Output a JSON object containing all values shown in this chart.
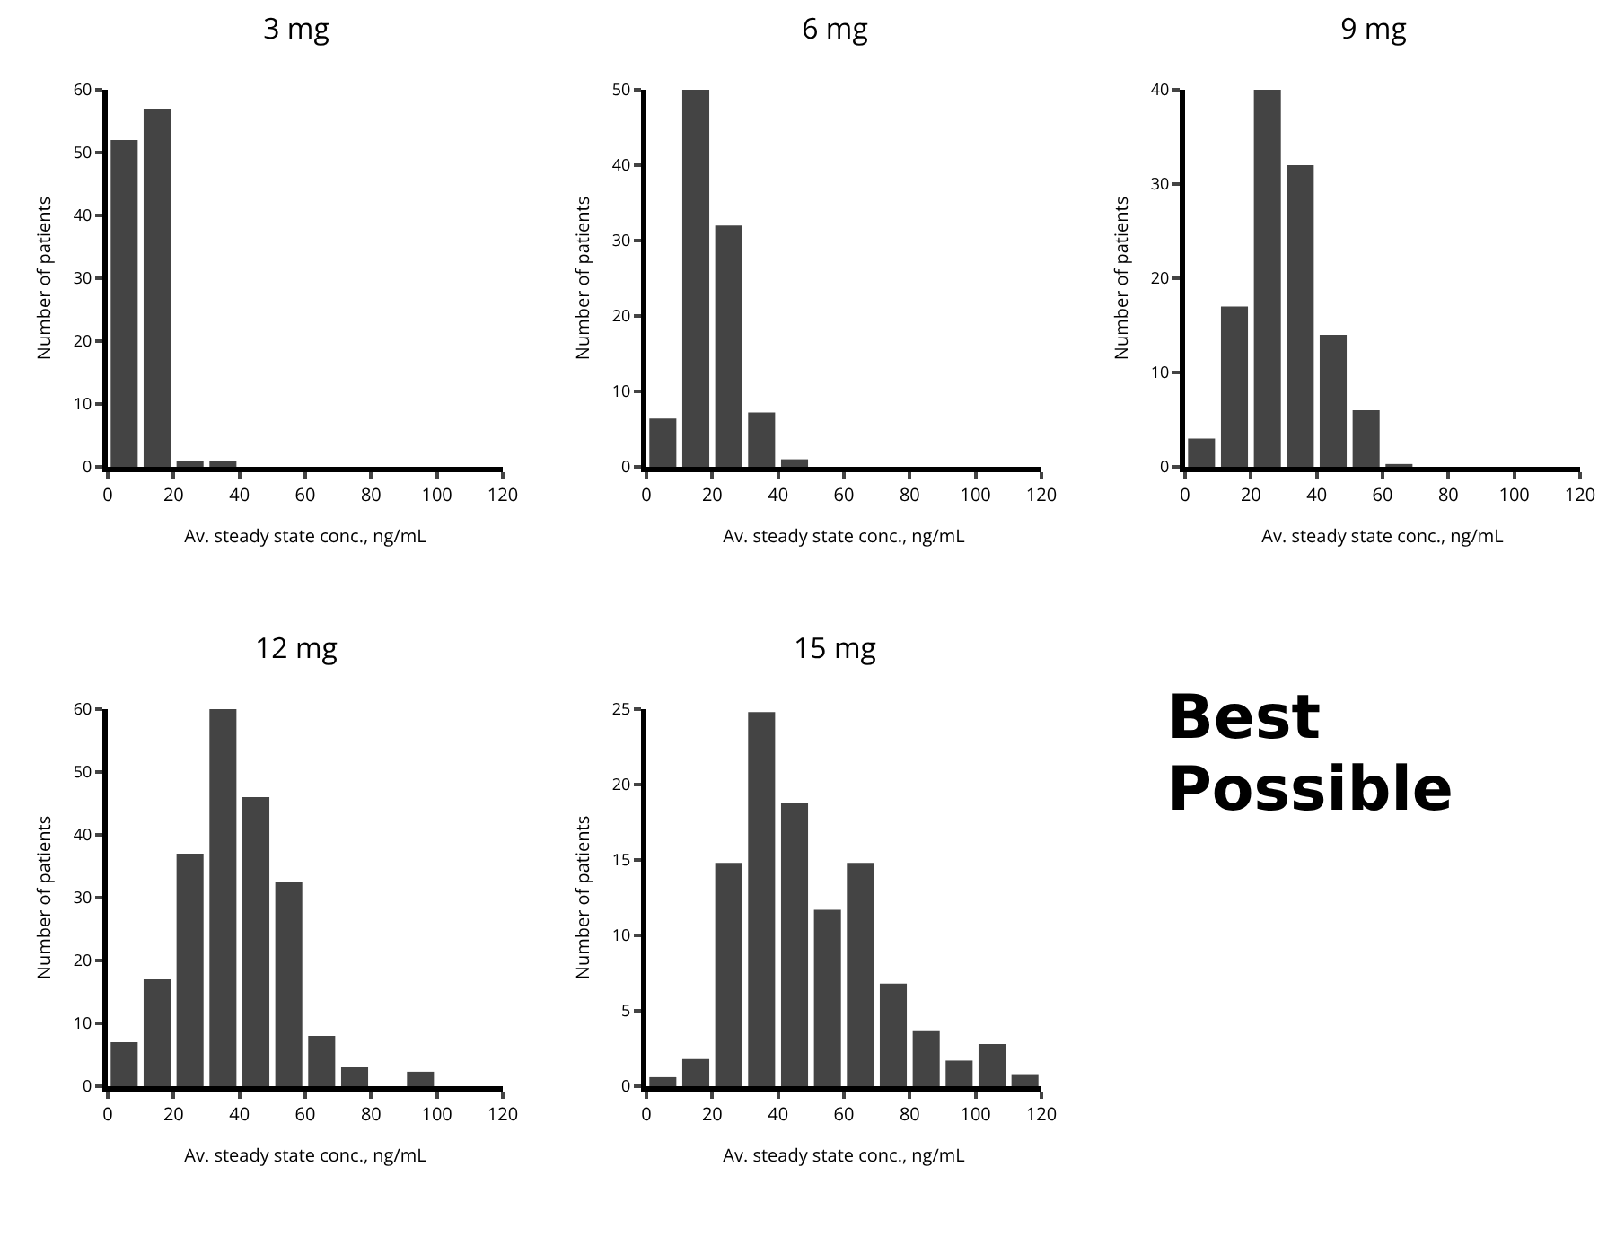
{
  "chart_data": [
    {
      "type": "histogram",
      "title": "3 mg",
      "xlabel": "Av. steady state conc., ng/mL",
      "ylabel": "Number of patients",
      "bins": [
        0,
        10,
        20,
        30,
        40
      ],
      "values": [
        52,
        57,
        1,
        1
      ],
      "color": "#444444",
      "xlim": [
        0,
        120
      ],
      "xticks": [
        0,
        20,
        40,
        60,
        80,
        100,
        120
      ],
      "ylim": [
        0,
        60
      ],
      "yticks": [
        0,
        10,
        20,
        30,
        40,
        50,
        60
      ],
      "grid": false
    },
    {
      "type": "histogram",
      "title": "6 mg",
      "xlabel": "Av. steady state conc., ng/mL",
      "ylabel": "Number of patients",
      "bins": [
        0,
        10,
        20,
        30,
        40,
        50
      ],
      "values": [
        6.4,
        50,
        32,
        7.2,
        1
      ],
      "color": "#444444",
      "xlim": [
        0,
        120
      ],
      "xticks": [
        0,
        20,
        40,
        60,
        80,
        100,
        120
      ],
      "ylim": [
        0,
        50
      ],
      "yticks": [
        0,
        10,
        20,
        30,
        40,
        50
      ],
      "grid": false
    },
    {
      "type": "histogram",
      "title": "9 mg",
      "xlabel": "Av. steady state conc., ng/mL",
      "ylabel": "Number of patients",
      "bins": [
        0,
        10,
        20,
        30,
        40,
        50,
        60,
        70
      ],
      "values": [
        3,
        17,
        40,
        32,
        14,
        6,
        0.3
      ],
      "color": "#444444",
      "xlim": [
        0,
        120
      ],
      "xticks": [
        0,
        20,
        40,
        60,
        80,
        100,
        120
      ],
      "ylim": [
        0,
        40
      ],
      "yticks": [
        0,
        10,
        20,
        30,
        40
      ],
      "grid": false
    },
    {
      "type": "histogram",
      "title": "12 mg",
      "xlabel": "Av. steady state conc., ng/mL",
      "ylabel": "Number of patients",
      "bins": [
        0,
        10,
        20,
        30,
        40,
        50,
        60,
        70,
        80,
        90,
        100
      ],
      "values": [
        7,
        17,
        37,
        60,
        46,
        32.5,
        8,
        3,
        0,
        2.3
      ],
      "color": "#444444",
      "xlim": [
        0,
        120
      ],
      "xticks": [
        0,
        20,
        40,
        60,
        80,
        100,
        120
      ],
      "ylim": [
        0,
        60
      ],
      "yticks": [
        0,
        10,
        20,
        30,
        40,
        50,
        60
      ],
      "grid": false
    },
    {
      "type": "histogram",
      "title": "15 mg",
      "xlabel": "Av. steady state conc., ng/mL",
      "ylabel": "Number of patients",
      "bins": [
        0,
        10,
        20,
        30,
        40,
        50,
        60,
        70,
        80,
        90,
        100,
        110,
        120
      ],
      "values": [
        0.6,
        1.8,
        14.8,
        24.8,
        18.8,
        11.7,
        14.8,
        6.8,
        3.7,
        1.7,
        2.8,
        0.8
      ],
      "color": "#444444",
      "xlim": [
        0,
        120
      ],
      "xticks": [
        0,
        20,
        40,
        60,
        80,
        100,
        120
      ],
      "ylim": [
        0,
        25
      ],
      "yticks": [
        0,
        5,
        10,
        15,
        20,
        25
      ],
      "grid": false
    },
    {
      "type": "other",
      "annotations": [
        "Best Possible"
      ]
    }
  ]
}
